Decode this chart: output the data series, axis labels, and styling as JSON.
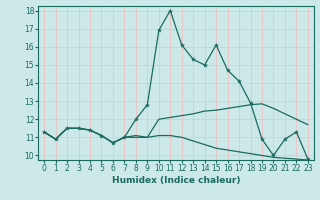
{
  "xlabel": "Humidex (Indice chaleur)",
  "bg_color": "#cce8e8",
  "grid_color": "#e8c8c8",
  "line_color": "#1a6b5e",
  "xlim": [
    -0.5,
    23.5
  ],
  "ylim": [
    9.75,
    18.25
  ],
  "yticks": [
    10,
    11,
    12,
    13,
    14,
    15,
    16,
    17,
    18
  ],
  "xticks": [
    0,
    1,
    2,
    3,
    4,
    5,
    6,
    7,
    8,
    9,
    10,
    11,
    12,
    13,
    14,
    15,
    16,
    17,
    18,
    19,
    20,
    21,
    22,
    23
  ],
  "line1_x": [
    0,
    1,
    2,
    3,
    4,
    5,
    6,
    7,
    8,
    9,
    10,
    11,
    12,
    13,
    14,
    15,
    16,
    17,
    18,
    19,
    20,
    21,
    22,
    23
  ],
  "line1_y": [
    11.3,
    10.9,
    11.5,
    11.5,
    11.4,
    11.1,
    10.7,
    11.0,
    12.0,
    12.8,
    16.9,
    18.0,
    16.1,
    15.3,
    15.0,
    16.1,
    14.7,
    14.1,
    12.9,
    10.9,
    10.0,
    10.9,
    11.3,
    9.8
  ],
  "line2_x": [
    0,
    1,
    2,
    3,
    4,
    5,
    6,
    7,
    8,
    9,
    10,
    11,
    12,
    13,
    14,
    15,
    16,
    17,
    18,
    19,
    20,
    21,
    22,
    23
  ],
  "line2_y": [
    11.3,
    10.9,
    11.5,
    11.5,
    11.4,
    11.1,
    10.7,
    11.0,
    11.1,
    11.0,
    12.0,
    12.1,
    12.2,
    12.3,
    12.45,
    12.5,
    12.6,
    12.7,
    12.8,
    12.85,
    12.6,
    12.3,
    12.0,
    11.7
  ],
  "line3_x": [
    0,
    1,
    2,
    3,
    4,
    5,
    6,
    7,
    8,
    9,
    10,
    11,
    12,
    13,
    14,
    15,
    16,
    17,
    18,
    19,
    20,
    21,
    22,
    23
  ],
  "line3_y": [
    11.3,
    10.9,
    11.5,
    11.5,
    11.4,
    11.1,
    10.7,
    11.0,
    11.0,
    11.0,
    11.1,
    11.1,
    11.0,
    10.8,
    10.6,
    10.4,
    10.3,
    10.2,
    10.1,
    10.0,
    9.9,
    9.85,
    9.8,
    9.75
  ]
}
